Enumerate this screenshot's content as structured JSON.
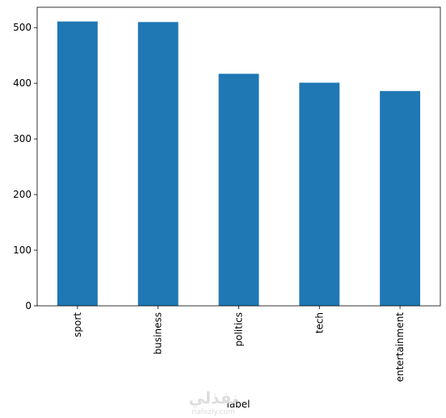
{
  "chart_data": {
    "type": "bar",
    "x_label": "label",
    "categories": [
      "sport",
      "business",
      "politics",
      "tech",
      "entertainment"
    ],
    "values": [
      511,
      510,
      417,
      401,
      386
    ],
    "color": "#1f77b4",
    "ylim": [
      0,
      536.55
    ],
    "yticks": [
      0,
      100,
      200,
      300,
      400,
      500
    ],
    "grid": false
  },
  "watermark": {
    "title": "نفذلي",
    "subtitle": "nafezly.com"
  }
}
